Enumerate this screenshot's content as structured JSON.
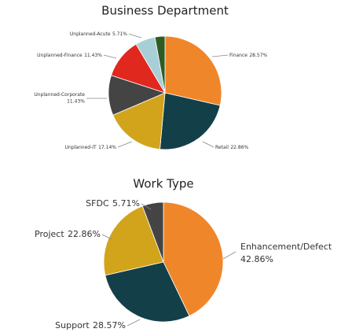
{
  "chart_data": [
    {
      "type": "pie",
      "title": "Business Department",
      "categories": [
        "Finance",
        "Retail",
        "Unplanned-IT",
        "Unplanned-Corporate",
        "Unplanned-Finance",
        "Unplanned-Acute",
        null
      ],
      "values": [
        28.57,
        22.86,
        17.14,
        11.43,
        11.43,
        5.71,
        2.86
      ],
      "value_labels": [
        "28.57%",
        "22.86%",
        "17.14%",
        "11.43%",
        "11.43%",
        "5.71%",
        null
      ],
      "colors": [
        "#f0862a",
        "#133f49",
        "#d2a41c",
        "#444444",
        "#e0281f",
        "#a9cfd6",
        "#2f5c22"
      ]
    },
    {
      "type": "pie",
      "title": "Work Type",
      "categories": [
        "Enhancement/Defect",
        "Support",
        "Project",
        "SFDC"
      ],
      "values": [
        42.86,
        28.57,
        22.86,
        5.71
      ],
      "value_labels": [
        "42.86%",
        "28.57%",
        "22.86%",
        "5.71%"
      ],
      "colors": [
        "#f0862a",
        "#133f49",
        "#d2a41c",
        "#444444"
      ]
    }
  ]
}
